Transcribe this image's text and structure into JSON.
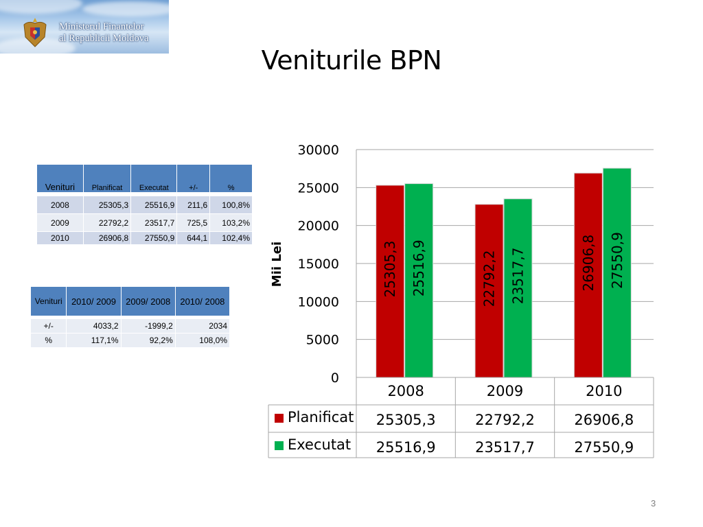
{
  "logo": {
    "line1": "Ministerul Finantelor",
    "line2": "al Republicii Moldova"
  },
  "slide": {
    "title": "Veniturile BPN",
    "page_number": "3"
  },
  "table1": {
    "headers": [
      "Venituri",
      "Planificat",
      "Executat",
      "+/-",
      "%"
    ],
    "rows": [
      [
        "2008",
        "25305,3",
        "25516,9",
        "211,6",
        "100,8%"
      ],
      [
        "2009",
        "22792,2",
        "23517,7",
        "725,5",
        "103,2%"
      ],
      [
        "2010",
        "26906,8",
        "27550,9",
        "644,1",
        "102,4%"
      ]
    ]
  },
  "table2": {
    "headers": [
      "Venituri",
      "2010/ 2009",
      "2009/ 2008",
      "2010/ 2008"
    ],
    "rows": [
      [
        "+/-",
        "4033,2",
        "-1999,2",
        "2034"
      ],
      [
        "%",
        "117,1%",
        "92,2%",
        "108,0%"
      ]
    ]
  },
  "colors": {
    "planificat": "#c00000",
    "executat": "#00b050",
    "table_header": "#4f81bd"
  },
  "chart_data": {
    "type": "bar",
    "categories": [
      "2008",
      "2009",
      "2010"
    ],
    "series": [
      {
        "name": "Planificat",
        "values": [
          25305.3,
          22792.2,
          26906.8
        ],
        "labels": [
          "25305,3",
          "22792,2",
          "26906,8"
        ],
        "color": "#c00000"
      },
      {
        "name": "Executat",
        "values": [
          25516.9,
          23517.7,
          27550.9
        ],
        "labels": [
          "25516,9",
          "23517,7",
          "27550,9"
        ],
        "color": "#00b050"
      }
    ],
    "ylabel": "Mii Lei",
    "ylim": [
      0,
      30000
    ],
    "yticks": [
      0,
      5000,
      10000,
      15000,
      20000,
      25000,
      30000
    ],
    "grid": true,
    "data_table": true
  }
}
